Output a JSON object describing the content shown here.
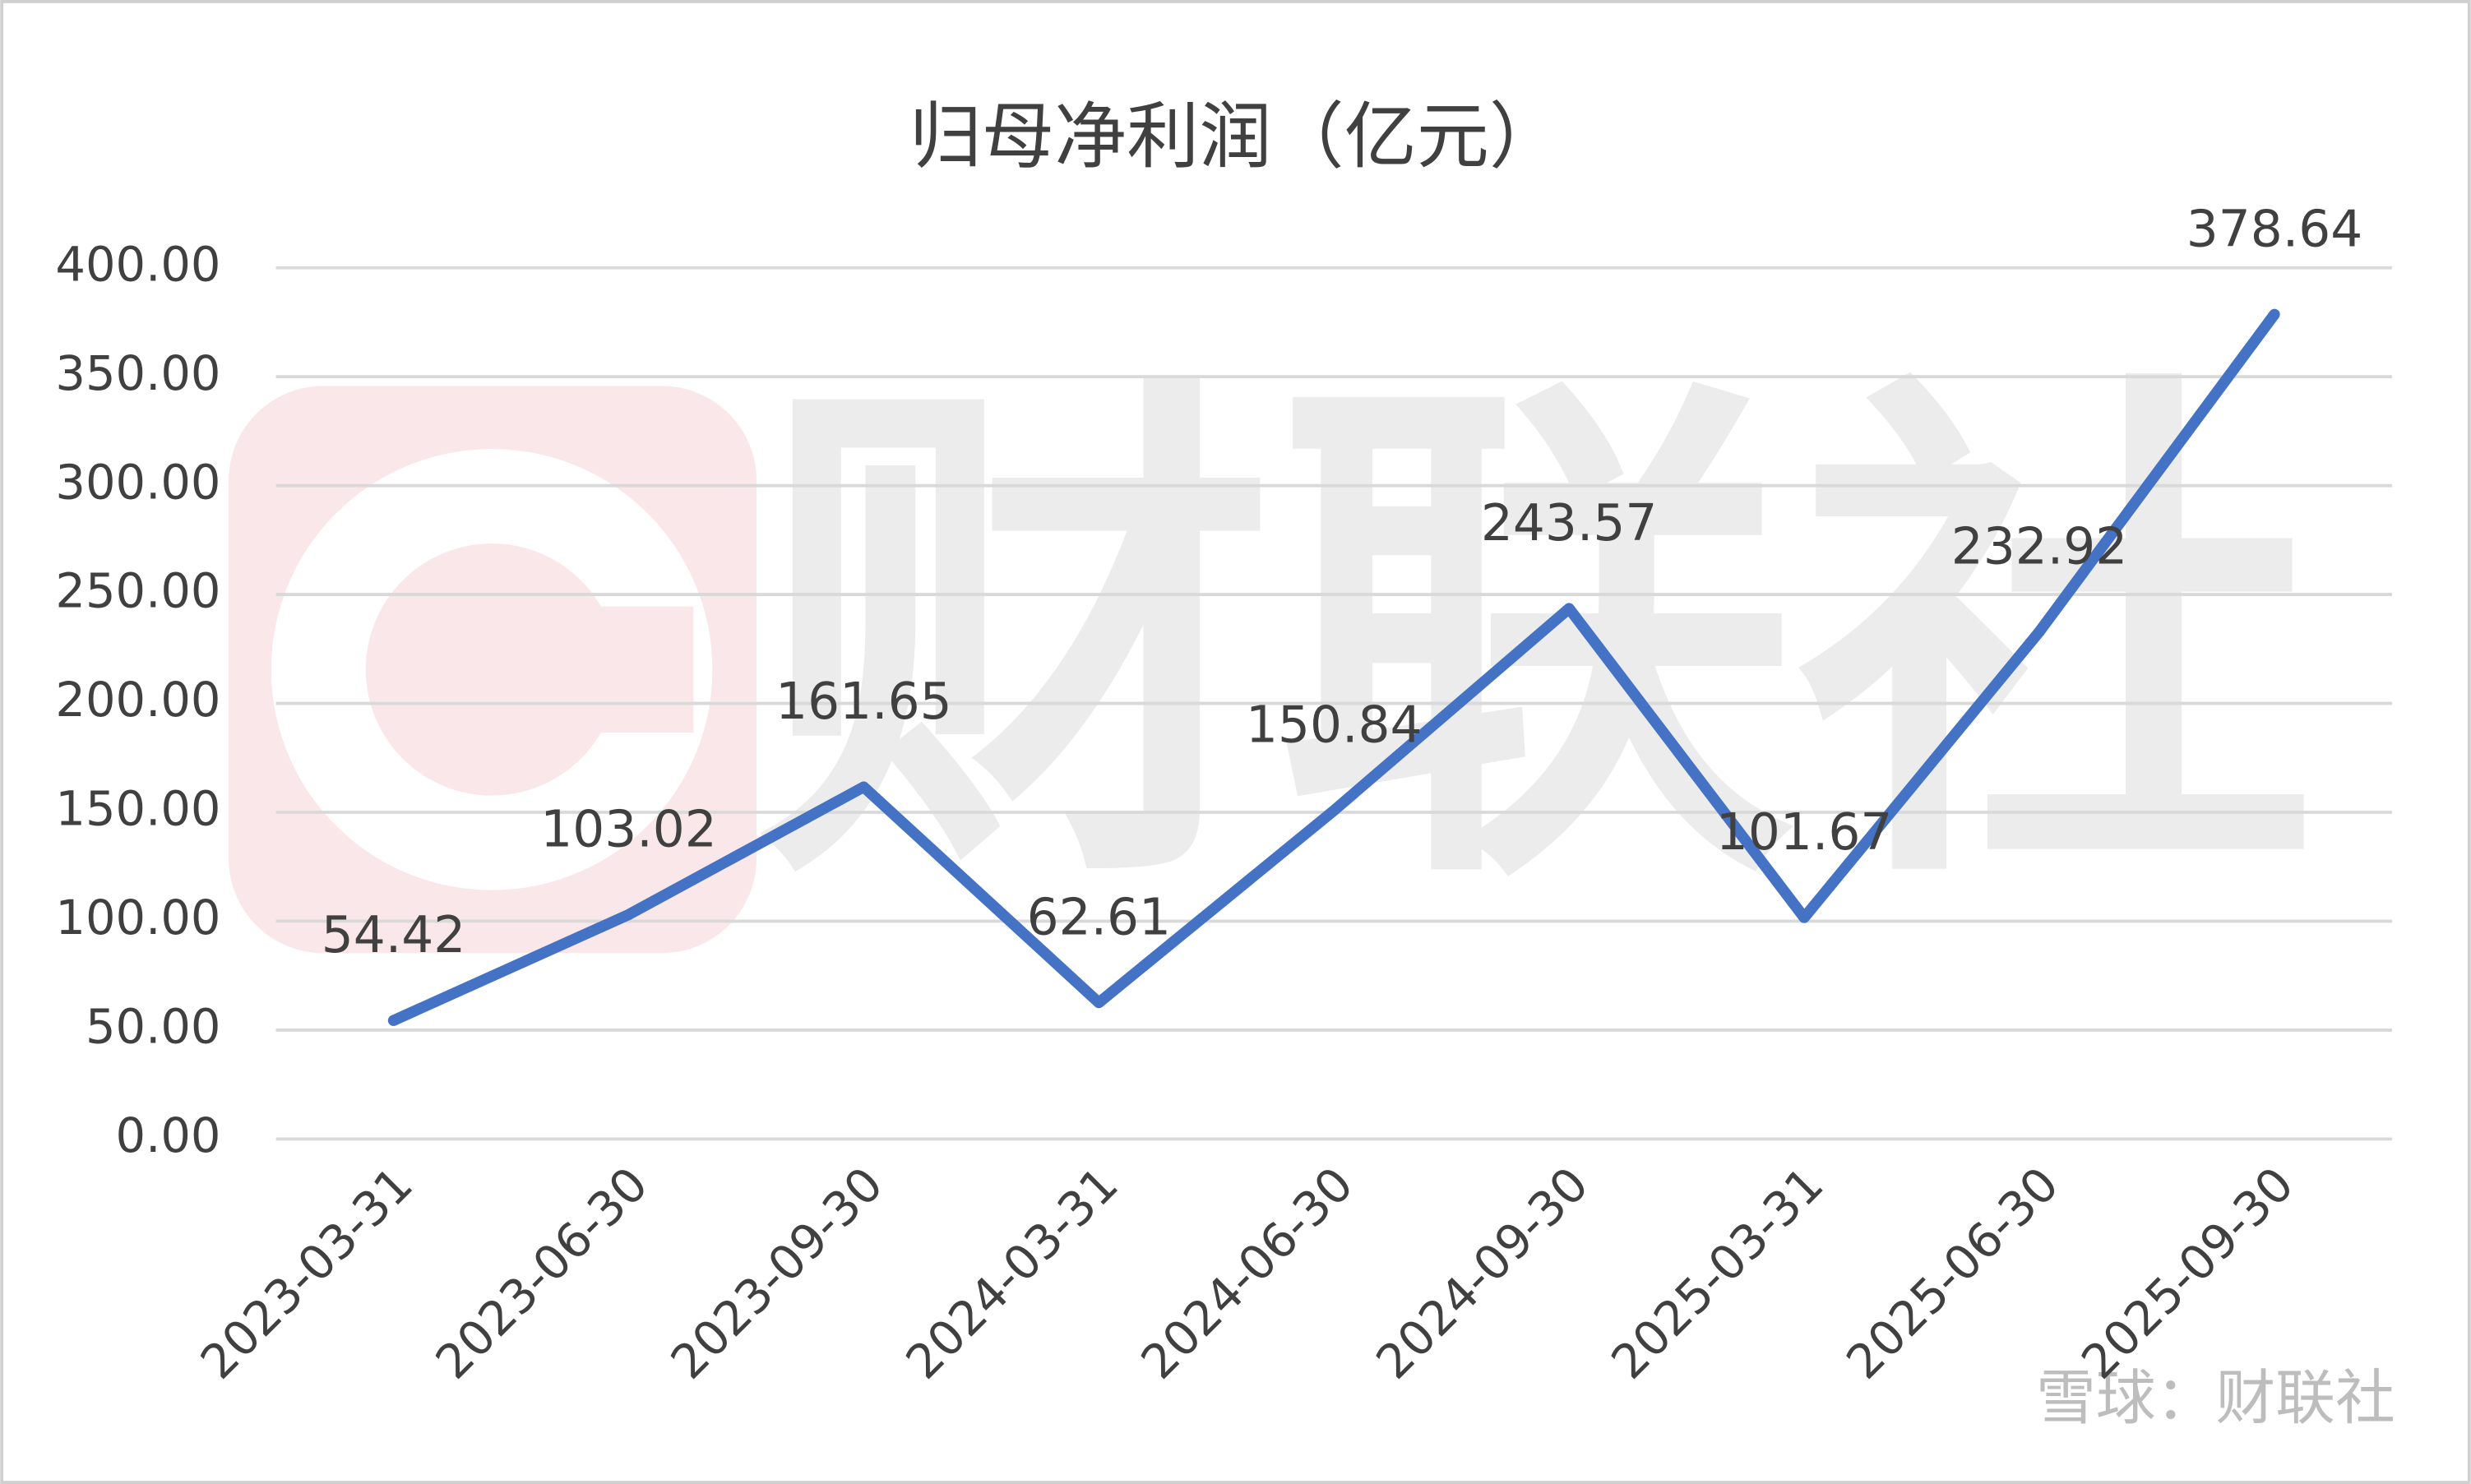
{
  "chart_data": {
    "type": "line",
    "title": "归母净利润（亿元）",
    "categories": [
      "2023-03-31",
      "2023-06-30",
      "2023-09-30",
      "2024-03-31",
      "2024-06-30",
      "2024-09-30",
      "2025-03-31",
      "2025-06-30",
      "2025-09-30"
    ],
    "series": [
      {
        "name": "归母净利润",
        "color": "#4472c4",
        "values": [
          54.42,
          103.02,
          161.65,
          62.61,
          150.84,
          243.57,
          101.67,
          232.92,
          378.64
        ],
        "value_labels": [
          "54.42",
          "103.02",
          "161.65",
          "62.61",
          "150.84",
          "243.57",
          "101.67",
          "232.92",
          "378.64"
        ]
      }
    ],
    "ylim": [
      0,
      400
    ],
    "yticks": [
      {
        "value": 0,
        "label": "0.00"
      },
      {
        "value": 50,
        "label": "50.00"
      },
      {
        "value": 100,
        "label": "100.00"
      },
      {
        "value": 150,
        "label": "150.00"
      },
      {
        "value": 200,
        "label": "200.00"
      },
      {
        "value": 250,
        "label": "250.00"
      },
      {
        "value": 300,
        "label": "300.00"
      },
      {
        "value": 350,
        "label": "350.00"
      },
      {
        "value": 400,
        "label": "400.00"
      }
    ],
    "grid": true,
    "watermark": "财联社",
    "source": "雪球：财联社"
  }
}
